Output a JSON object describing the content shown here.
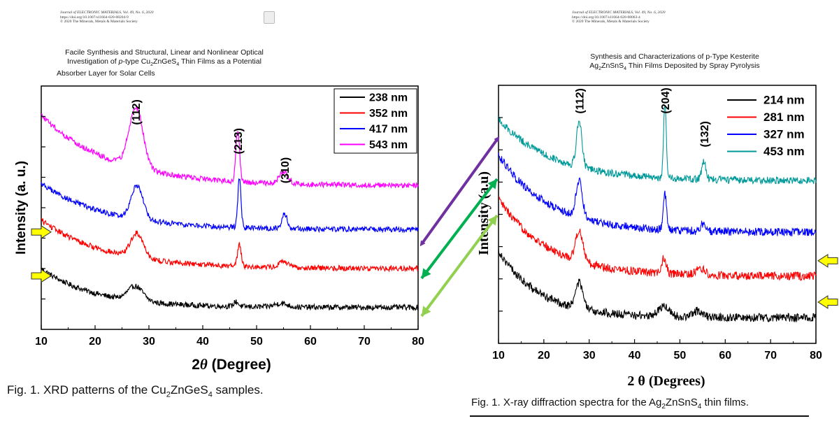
{
  "left_paper": {
    "journal_line": "Journal of ELECTRONIC MATERIALS, Vol. 49, No. 6, 2020",
    "doi_line": "https://doi.org/10.1007/s11664-020-08204-9",
    "copyright_line": "© 2020 The Minerals, Metals & Materials Society",
    "title_line1": "Facile Synthesis and Structural, Linear and Nonlinear Optical",
    "title_line2_prefix": "Investigation of ",
    "title_line2_italic": "p",
    "title_line2_mid": "-type Cu",
    "title_line2_sub1": "2",
    "title_line2_compound": "ZnGeS",
    "title_line2_sub2": "4",
    "title_line2_suffix": " Thin Films as a Potential",
    "title_line3": "Absorber Layer for Solar Cells",
    "caption_prefix": "Fig. 1.  XRD patterns of the Cu",
    "caption_sub1": "2",
    "caption_mid": "ZnGeS",
    "caption_sub2": "4",
    "caption_suffix": " samples."
  },
  "right_paper": {
    "journal_line": "Journal of ELECTRONIC MATERIALS, Vol. 49, No. 6, 2020",
    "doi_line": "https://doi.org/10.1007/s11664-020-08063-4",
    "copyright_line": "© 2020 The Minerals, Metals & Materials Society",
    "title_line1": "Synthesis and Characterizations of p-Type Kesterite",
    "title_line2_prefix": "Ag",
    "title_line2_sub1": "2",
    "title_line2_compound": "ZnSnS",
    "title_line2_sub2": "4",
    "title_line2_suffix": " Thin Films Deposited by Spray Pyrolysis",
    "caption_prefix": "Fig. 1.  X-ray diffraction spectra for the Ag",
    "caption_sub1": "2",
    "caption_mid": "ZnSnS",
    "caption_sub2": "4",
    "caption_suffix": " thin films."
  },
  "arrows": {
    "colors": [
      "#7030a0",
      "#00b050",
      "#92d050"
    ],
    "marker_fill": "#ffff00"
  },
  "chart_data": [
    {
      "type": "line",
      "title": "",
      "xlabel_symbol": "2",
      "xlabel_theta": "θ",
      "xlabel_unit": " (Degree)",
      "ylabel": "Intensity (a. u.)",
      "xlim": [
        10,
        80
      ],
      "ylim": [
        0,
        100
      ],
      "x_ticks": [
        "10",
        "20",
        "30",
        "40",
        "50",
        "60",
        "70",
        "80"
      ],
      "series": [
        {
          "name": "238 nm",
          "color": "#000000",
          "baseline": 5,
          "slope": 16,
          "decay": 10,
          "level": 4,
          "noise": 1.1,
          "peaks": [
            [
              27.5,
              6,
              1.4
            ],
            [
              46.2,
              2,
              0.4
            ],
            [
              54.5,
              1.5,
              1.2
            ]
          ]
        },
        {
          "name": "352 nm",
          "color": "#ff0000",
          "baseline": 22,
          "slope": 20,
          "decay": 12,
          "level": 3,
          "noise": 1.1,
          "peaks": [
            [
              27.8,
              10,
              1.2
            ],
            [
              46.8,
              9,
              0.35
            ],
            [
              55,
              2.5,
              0.8
            ]
          ]
        },
        {
          "name": "417 nm",
          "color": "#0000ff",
          "baseline": 38,
          "slope": 19,
          "decay": 12,
          "level": 3,
          "noise": 1.1,
          "peaks": [
            [
              27.8,
              14,
              1.1
            ],
            [
              46.8,
              20,
              0.3
            ],
            [
              55.2,
              6,
              0.5
            ]
          ]
        },
        {
          "name": "543 nm",
          "color": "#ff00ff",
          "baseline": 55,
          "slope": 29,
          "decay": 13,
          "level": 4,
          "noise": 1.1,
          "peaks": [
            [
              27.6,
              25,
              1.3
            ],
            [
              46.5,
              21,
              0.35
            ],
            [
              55,
              5,
              0.8
            ]
          ]
        }
      ],
      "peak_labels": [
        {
          "label": "(112)",
          "x": 27.5,
          "y": 84
        },
        {
          "label": "(213)",
          "x": 46.5,
          "y": 72
        },
        {
          "label": "(310)",
          "x": 55.2,
          "y": 60
        }
      ],
      "markers": [
        {
          "x": 10,
          "y": 40
        },
        {
          "x": 10,
          "y": 22
        }
      ]
    },
    {
      "type": "line",
      "title": "",
      "xlabel_symbol": "2 ",
      "xlabel_theta": "θ",
      "xlabel_unit": " (Degrees)",
      "ylabel": "Intensity (a.u)",
      "xlim": [
        10,
        80
      ],
      "ylim": [
        0,
        100
      ],
      "x_ticks": [
        "10",
        "20",
        "30",
        "40",
        "50",
        "60",
        "70",
        "80"
      ],
      "series": [
        {
          "name": "214 nm",
          "color": "#000000",
          "baseline": 4,
          "slope": 26,
          "decay": 9,
          "level": 6,
          "noise": 1.6,
          "peaks": [
            [
              27.8,
              10,
              0.8
            ],
            [
              46.5,
              4,
              1.2
            ],
            [
              54,
              2.5,
              1
            ]
          ]
        },
        {
          "name": "281 nm",
          "color": "#ff0000",
          "baseline": 21,
          "slope": 30,
          "decay": 11,
          "level": 5,
          "noise": 1.6,
          "peaks": [
            [
              27.8,
              12,
              0.8
            ],
            [
              46.5,
              6,
              0.5
            ],
            [
              54.5,
              2.5,
              1
            ]
          ]
        },
        {
          "name": "327 nm",
          "color": "#0000ff",
          "baseline": 38,
          "slope": 30,
          "decay": 11,
          "level": 5,
          "noise": 1.6,
          "peaks": [
            [
              27.8,
              14,
              0.7
            ],
            [
              46.7,
              14,
              0.35
            ],
            [
              55.3,
              3,
              0.6
            ]
          ]
        },
        {
          "name": "453 nm",
          "color": "#009999",
          "baseline": 60,
          "slope": 24,
          "decay": 12,
          "level": 3,
          "noise": 1.4,
          "peaks": [
            [
              27.8,
              18,
              0.6
            ],
            [
              46.7,
              29,
              0.3
            ],
            [
              55.3,
              7,
              0.45
            ]
          ]
        }
      ],
      "peak_labels": [
        {
          "label": "(112)",
          "x": 27.8,
          "y": 89
        },
        {
          "label": "(204)",
          "x": 46.7,
          "y": 89
        },
        {
          "label": "(132)",
          "x": 55.3,
          "y": 76
        }
      ],
      "markers": [
        {
          "x": 80,
          "y": 32
        },
        {
          "x": 80,
          "y": 16
        }
      ]
    }
  ]
}
